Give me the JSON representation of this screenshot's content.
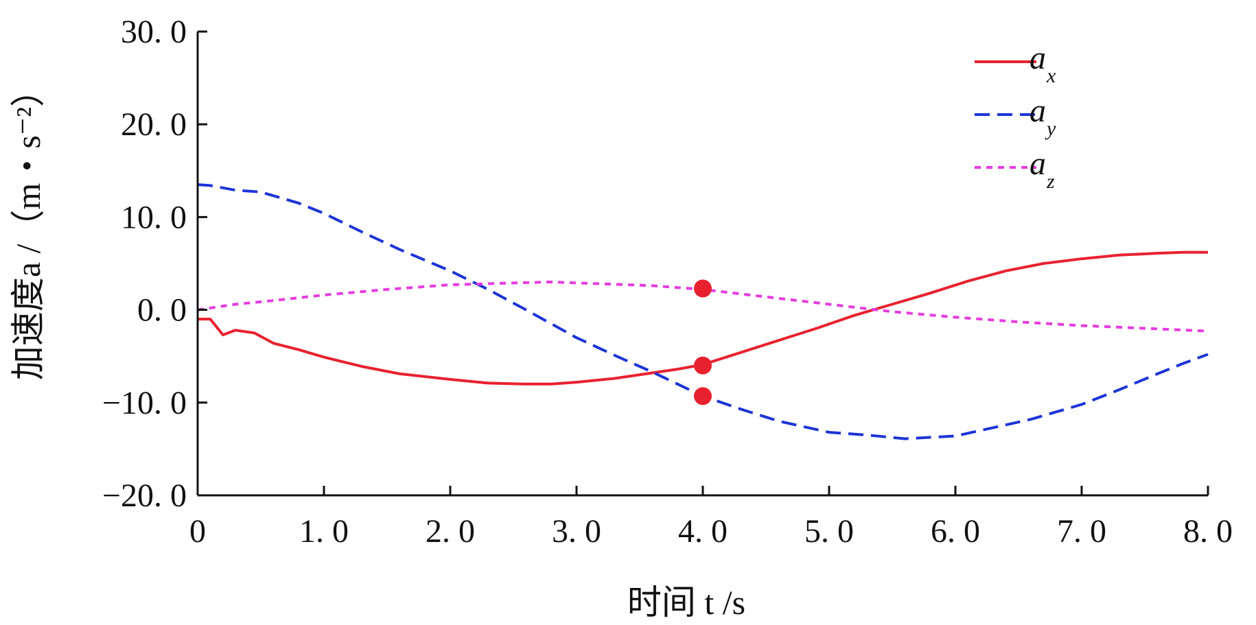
{
  "chart_data": {
    "type": "line",
    "xlabel": "时间 t /s",
    "ylabel": "加速度a /（m・s⁻²）",
    "xlim": [
      0,
      8
    ],
    "ylim": [
      -20,
      30
    ],
    "xticks": [
      0,
      1,
      2,
      3,
      4,
      5,
      6,
      7,
      8
    ],
    "xtick_labels": [
      "0",
      "1. 0",
      "2. 0",
      "3. 0",
      "4. 0",
      "5. 0",
      "6. 0",
      "7. 0",
      "8. 0"
    ],
    "yticks": [
      30,
      20,
      10,
      0,
      -10,
      -20
    ],
    "ytick_labels": [
      "30. 0",
      "20. 0",
      "10. 0",
      "0. 0",
      "−10. 0",
      "−20. 0"
    ],
    "grid": false,
    "legend_position": "top-right",
    "series": [
      {
        "name": "a_x",
        "label_main": "a",
        "label_sub": "x",
        "color": "#e8212f",
        "dash": "solid",
        "x": [
          0,
          0.1,
          0.2,
          0.3,
          0.45,
          0.6,
          0.8,
          1.0,
          1.3,
          1.6,
          2.0,
          2.3,
          2.6,
          2.8,
          3.0,
          3.3,
          3.6,
          3.8,
          4.0,
          4.3,
          4.6,
          4.9,
          5.2,
          5.5,
          5.8,
          6.1,
          6.4,
          6.7,
          7.0,
          7.3,
          7.6,
          7.8,
          8.0
        ],
        "y": [
          -1.0,
          -1.0,
          -2.7,
          -2.2,
          -2.5,
          -3.6,
          -4.3,
          -5.1,
          -6.1,
          -6.9,
          -7.5,
          -7.9,
          -8.0,
          -8.0,
          -7.8,
          -7.4,
          -6.8,
          -6.4,
          -5.9,
          -4.6,
          -3.3,
          -2.0,
          -0.6,
          0.6,
          1.8,
          3.1,
          4.2,
          5.0,
          5.5,
          5.9,
          6.1,
          6.2,
          6.2
        ],
        "markers": [
          [
            4.0,
            -6.0
          ]
        ]
      },
      {
        "name": "a_y",
        "label_main": "a",
        "label_sub": "y",
        "color": "#1d35d6",
        "dash": "dashed",
        "x": [
          0,
          0.1,
          0.3,
          0.5,
          0.8,
          1.0,
          1.3,
          1.6,
          2.0,
          2.3,
          2.6,
          3.0,
          3.3,
          3.6,
          3.8,
          4.0,
          4.3,
          4.6,
          5.0,
          5.3,
          5.6,
          6.0,
          6.3,
          6.6,
          7.0,
          7.3,
          7.6,
          7.8,
          8.0
        ],
        "y": [
          13.5,
          13.4,
          12.9,
          12.7,
          11.5,
          10.4,
          8.4,
          6.5,
          4.2,
          2.2,
          0.0,
          -3.0,
          -4.9,
          -6.7,
          -8.0,
          -9.3,
          -10.7,
          -12.0,
          -13.2,
          -13.5,
          -13.9,
          -13.6,
          -12.7,
          -11.8,
          -10.2,
          -8.6,
          -6.9,
          -5.8,
          -4.8
        ],
        "markers": [
          [
            4.0,
            -9.3
          ]
        ]
      },
      {
        "name": "a_z",
        "label_main": "a",
        "label_sub": "z",
        "color": "#e63be0",
        "dash": "dotted",
        "x": [
          0,
          0.3,
          0.6,
          1.0,
          1.5,
          2.0,
          2.5,
          2.8,
          3.2,
          3.6,
          4.0,
          4.5,
          5.0,
          5.5,
          6.0,
          6.5,
          7.0,
          7.5,
          8.0
        ],
        "y": [
          0.0,
          0.6,
          1.0,
          1.6,
          2.2,
          2.7,
          2.9,
          3.0,
          2.8,
          2.6,
          2.2,
          1.4,
          0.6,
          -0.2,
          -0.8,
          -1.3,
          -1.7,
          -2.0,
          -2.3
        ],
        "markers": [
          [
            4.0,
            2.3
          ]
        ]
      }
    ]
  }
}
